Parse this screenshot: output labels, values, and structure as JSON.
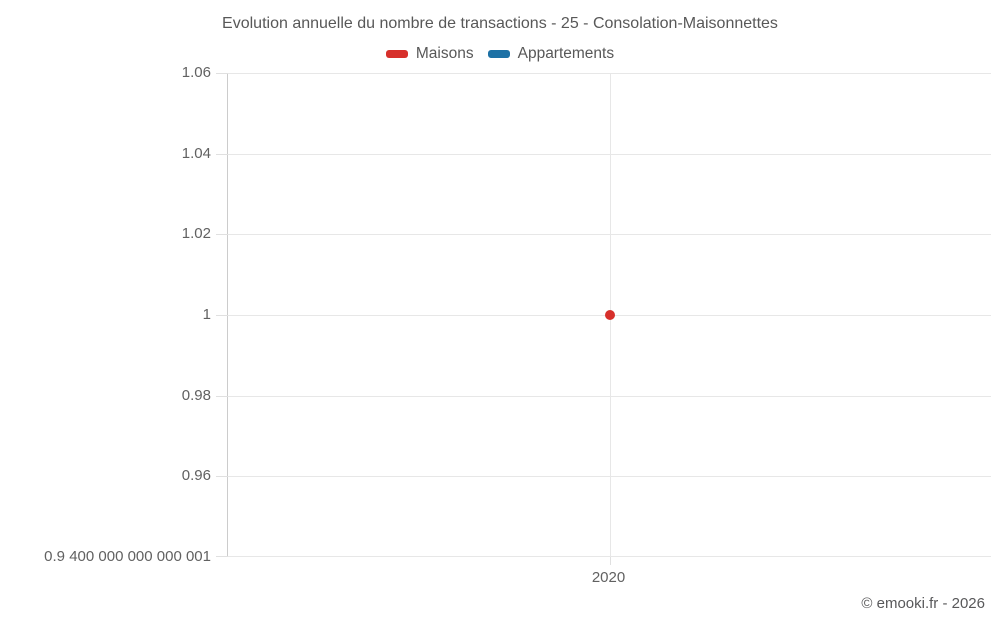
{
  "footer": "© emooki.fr - 2026",
  "chart_data": {
    "type": "scatter",
    "title": "Evolution annuelle du nombre de transactions - 25 - Consolation-Maisonnettes",
    "xlabel": "",
    "ylabel": "",
    "ylim": [
      0.9400000000000001,
      1.06
    ],
    "grid": true,
    "legend_position": "top",
    "series": [
      {
        "name": "Maisons",
        "color": "#d7302b",
        "points": [
          {
            "x": 2020,
            "y": 1
          }
        ]
      },
      {
        "name": "Appartements",
        "color": "#1d71a5",
        "points": []
      }
    ],
    "yticks": [
      {
        "value": 1.06,
        "label": "1.06"
      },
      {
        "value": 1.04,
        "label": "1.04"
      },
      {
        "value": 1.02,
        "label": "1.02"
      },
      {
        "value": 1.0,
        "label": "1"
      },
      {
        "value": 0.98,
        "label": "0.98"
      },
      {
        "value": 0.96,
        "label": "0.96"
      },
      {
        "value": 0.9400000000000001,
        "label": "0.9 400 000 000 000 001"
      }
    ],
    "xticks": [
      {
        "value": 2020,
        "label": "2020",
        "pos": 0.5
      }
    ]
  }
}
